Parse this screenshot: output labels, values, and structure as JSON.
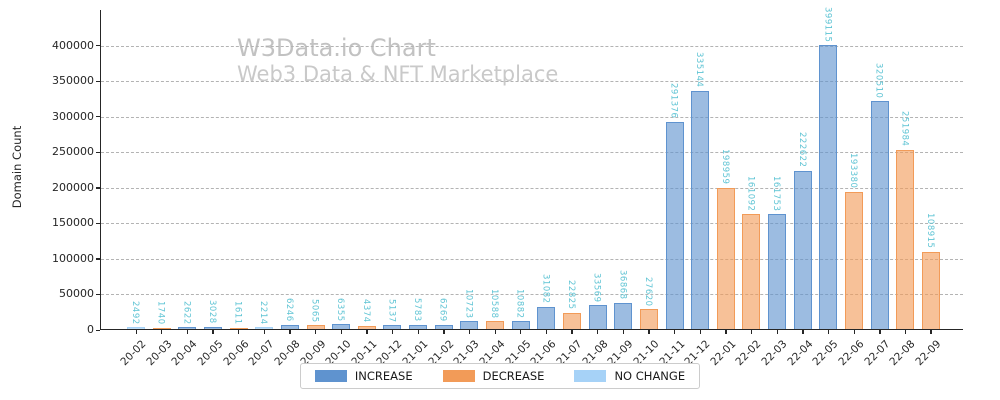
{
  "watermark": {
    "title": "W3Data.io Chart",
    "subtitle": "Web3 Data & NFT Marketplace"
  },
  "colors": {
    "increase": {
      "edge": "#5f93cf",
      "fill": "rgba(95,147,207,0.62)"
    },
    "decrease": {
      "edge": "#f29b58",
      "fill": "rgba(242,155,88,0.62)"
    },
    "no_change": {
      "edge": "#a6d2f7",
      "fill": "rgba(166,210,247,0.72)"
    },
    "value_label": "#5fc4d4",
    "grid": "#b3b3b3",
    "axis": "#262626"
  },
  "chart_data": {
    "type": "bar",
    "title": "W3Data.io Chart",
    "subtitle": "Web3 Data & NFT Marketplace",
    "xlabel": "",
    "ylabel": "Domain Count",
    "ylim": [
      0,
      450000
    ],
    "yticks": [
      0,
      50000,
      100000,
      150000,
      200000,
      250000,
      300000,
      350000,
      400000
    ],
    "grid": "horizontal-dashed",
    "legend_position": "bottom-center",
    "legend": [
      {
        "label": "INCREASE",
        "series": "increase"
      },
      {
        "label": "DECREASE",
        "series": "decrease"
      },
      {
        "label": "NO CHANGE",
        "series": "no_change"
      }
    ],
    "categories": [
      "20-02",
      "20-03",
      "20-04",
      "20-05",
      "20-06",
      "20-07",
      "20-08",
      "20-09",
      "20-10",
      "20-11",
      "20-12",
      "21-01",
      "21-02",
      "21-03",
      "21-04",
      "21-05",
      "21-06",
      "21-07",
      "21-08",
      "21-09",
      "21-10",
      "21-11",
      "21-12",
      "22-01",
      "22-02",
      "22-03",
      "22-04",
      "22-05",
      "22-06",
      "22-07",
      "22-08",
      "22-09"
    ],
    "bars": [
      {
        "category": "20-02",
        "value": 2492,
        "series": "no_change"
      },
      {
        "category": "20-03",
        "value": 1740,
        "series": "decrease"
      },
      {
        "category": "20-04",
        "value": 2622,
        "series": "increase"
      },
      {
        "category": "20-05",
        "value": 3028,
        "series": "increase"
      },
      {
        "category": "20-06",
        "value": 1611,
        "series": "decrease"
      },
      {
        "category": "20-07",
        "value": 2214,
        "series": "no_change"
      },
      {
        "category": "20-08",
        "value": 6246,
        "series": "increase"
      },
      {
        "category": "20-09",
        "value": 5065,
        "series": "decrease"
      },
      {
        "category": "20-10",
        "value": 6355,
        "series": "increase"
      },
      {
        "category": "20-11",
        "value": 4374,
        "series": "decrease"
      },
      {
        "category": "20-12",
        "value": 5137,
        "series": "increase"
      },
      {
        "category": "21-01",
        "value": 5783,
        "series": "increase"
      },
      {
        "category": "21-02",
        "value": 6269,
        "series": "increase"
      },
      {
        "category": "21-03",
        "value": 10723,
        "series": "increase"
      },
      {
        "category": "21-04",
        "value": 10588,
        "series": "decrease"
      },
      {
        "category": "21-05",
        "value": 10882,
        "series": "increase"
      },
      {
        "category": "21-06",
        "value": 31082,
        "series": "increase"
      },
      {
        "category": "21-07",
        "value": 22825,
        "series": "decrease"
      },
      {
        "category": "21-08",
        "value": 33569,
        "series": "increase"
      },
      {
        "category": "21-09",
        "value": 36868,
        "series": "increase"
      },
      {
        "category": "21-10",
        "value": 27620,
        "series": "decrease"
      },
      {
        "category": "21-11",
        "value": 291376,
        "series": "increase"
      },
      {
        "category": "21-12",
        "value": 335144,
        "series": "increase"
      },
      {
        "category": "22-01",
        "value": 198959,
        "series": "decrease"
      },
      {
        "category": "22-02",
        "value": 161092,
        "series": "decrease"
      },
      {
        "category": "22-03",
        "value": 161753,
        "series": "increase"
      },
      {
        "category": "22-04",
        "value": 222622,
        "series": "increase"
      },
      {
        "category": "22-05",
        "value": 399115,
        "series": "increase"
      },
      {
        "category": "22-06",
        "value": 193380,
        "series": "decrease"
      },
      {
        "category": "22-07",
        "value": 320510,
        "series": "increase"
      },
      {
        "category": "22-08",
        "value": 251984,
        "series": "decrease"
      },
      {
        "category": "22-09",
        "value": 108915,
        "series": "decrease"
      }
    ]
  }
}
